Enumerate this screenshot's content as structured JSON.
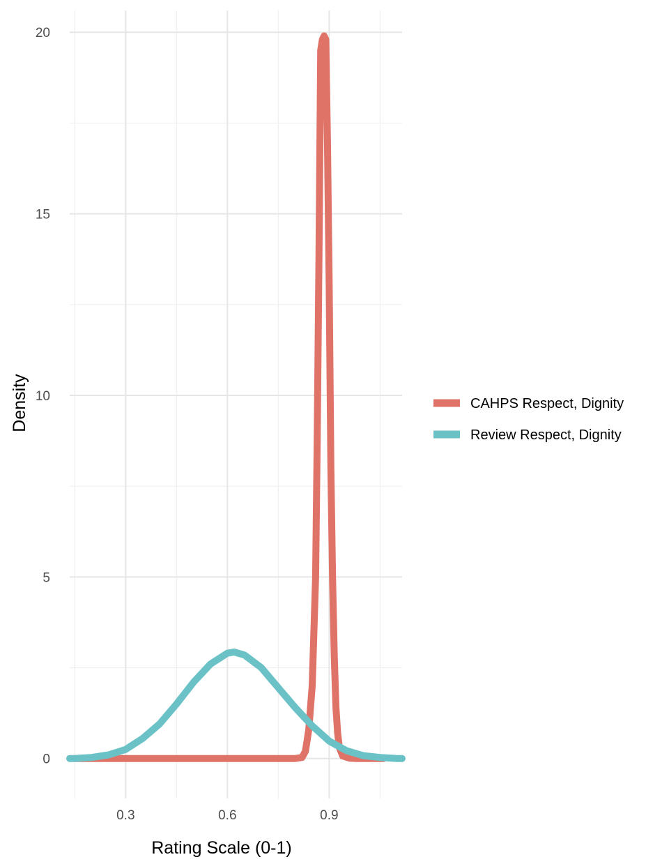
{
  "chart_data": {
    "type": "line",
    "title": "",
    "xlabel": "Rating Scale (0-1)",
    "ylabel": "Density",
    "xlim": [
      0.135,
      1.115
    ],
    "ylim": [
      -1.1,
      20.6
    ],
    "x_ticks": [
      0.3,
      0.6,
      0.9
    ],
    "x_tick_labels": [
      "0.3",
      "0.6",
      "0.9"
    ],
    "x_minor_ticks": [
      0.15,
      0.45,
      0.75,
      1.05
    ],
    "y_ticks": [
      0,
      5,
      10,
      15,
      20
    ],
    "y_tick_labels": [
      "0",
      "5",
      "10",
      "15",
      "20"
    ],
    "y_minor_ticks": [
      2.5,
      7.5,
      12.5,
      17.5
    ],
    "grid": true,
    "legend_position": "right",
    "series": [
      {
        "name": "CAHPS Respect, Dignity",
        "color": "#e07368",
        "points": [
          [
            0.15,
            0
          ],
          [
            0.3,
            0
          ],
          [
            0.5,
            0
          ],
          [
            0.7,
            0
          ],
          [
            0.8,
            0
          ],
          [
            0.82,
            0.03
          ],
          [
            0.83,
            0.2
          ],
          [
            0.84,
            0.8
          ],
          [
            0.85,
            2.0
          ],
          [
            0.86,
            5.0
          ],
          [
            0.865,
            9.0
          ],
          [
            0.87,
            14.0
          ],
          [
            0.875,
            19.5
          ],
          [
            0.88,
            19.8
          ],
          [
            0.885,
            19.9
          ],
          [
            0.89,
            19.8
          ],
          [
            0.895,
            17.0
          ],
          [
            0.9,
            13.0
          ],
          [
            0.905,
            8.0
          ],
          [
            0.91,
            5.0
          ],
          [
            0.915,
            2.8
          ],
          [
            0.92,
            1.4
          ],
          [
            0.925,
            0.7
          ],
          [
            0.93,
            0.3
          ],
          [
            0.94,
            0.07
          ],
          [
            0.96,
            0.01
          ],
          [
            0.98,
            0
          ],
          [
            1.06,
            0
          ]
        ]
      },
      {
        "name": "Review Respect, Dignity",
        "color": "#6ac2c6",
        "points": [
          [
            0.135,
            0
          ],
          [
            0.15,
            0.0
          ],
          [
            0.2,
            0.03
          ],
          [
            0.25,
            0.1
          ],
          [
            0.3,
            0.25
          ],
          [
            0.35,
            0.55
          ],
          [
            0.4,
            0.95
          ],
          [
            0.45,
            1.5
          ],
          [
            0.5,
            2.1
          ],
          [
            0.55,
            2.6
          ],
          [
            0.6,
            2.9
          ],
          [
            0.62,
            2.93
          ],
          [
            0.65,
            2.85
          ],
          [
            0.7,
            2.5
          ],
          [
            0.75,
            1.95
          ],
          [
            0.8,
            1.4
          ],
          [
            0.85,
            0.9
          ],
          [
            0.9,
            0.48
          ],
          [
            0.95,
            0.22
          ],
          [
            1.0,
            0.08
          ],
          [
            1.05,
            0.03
          ],
          [
            1.1,
            0.0
          ],
          [
            1.115,
            0
          ]
        ]
      }
    ]
  }
}
